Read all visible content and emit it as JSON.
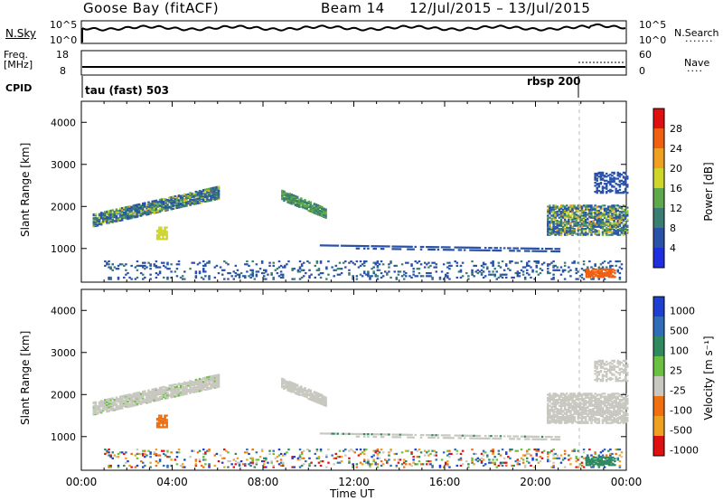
{
  "header": {
    "station": "Goose Bay (fitACF)",
    "beam": "Beam 14",
    "daterange": "12/Jul/2015 – 13/Jul/2015"
  },
  "panels": {
    "noise": {
      "left_label": "N.Sky",
      "right_label": "N.Search",
      "left_ticks": [
        "10^5",
        "10^0"
      ],
      "right_ticks": [
        "10^5",
        "10^0"
      ]
    },
    "freq": {
      "left_label_line1": "Freq.",
      "left_label_line2": "[MHz]",
      "right_label": "Nave",
      "left_ticks": [
        "18",
        "8"
      ],
      "right_ticks": [
        "60",
        "0"
      ]
    },
    "cpid": {
      "label": "CPID",
      "segments": [
        "tau (fast) 503",
        "rbsp 200"
      ]
    }
  },
  "chart_data": [
    {
      "type": "heatmap",
      "title": "",
      "xlabel": "",
      "ylabel": "Slant Range [km]",
      "x_ticks": [
        "00:00",
        "04:00",
        "08:00",
        "12:00",
        "16:00",
        "20:00",
        "00:00"
      ],
      "y_ticks": [
        1000,
        2000,
        3000,
        4000
      ],
      "ylim": [
        200,
        4500
      ],
      "colorbar_label": "Power [dB]",
      "colorbar_ticks": [
        4,
        8,
        12,
        16,
        20,
        24,
        28
      ],
      "colorbar_colors": [
        "#1f2fe0",
        "#2a52a8",
        "#3a7d72",
        "#5fa84c",
        "#cfd62a",
        "#f0a020",
        "#f06010",
        "#e01010"
      ],
      "features": [
        {
          "time_h": [
            0.5,
            6
          ],
          "range_km": [
            1500,
            2300
          ],
          "description": "diagonal band"
        },
        {
          "time_h": [
            8.8,
            10.8
          ],
          "range_km": [
            1700,
            2400
          ],
          "description": "diagonal band"
        },
        {
          "time_h": [
            10.5,
            21
          ],
          "range_km": [
            900,
            1100
          ],
          "description": "near-range band"
        },
        {
          "time_h": [
            20.5,
            24
          ],
          "range_km": [
            1300,
            2700
          ],
          "description": "strong echoes"
        }
      ]
    },
    {
      "type": "heatmap",
      "title": "",
      "xlabel": "Time UT",
      "ylabel": "Slant Range [km]",
      "x_ticks": [
        "00:00",
        "04:00",
        "08:00",
        "12:00",
        "16:00",
        "20:00",
        "00:00"
      ],
      "y_ticks": [
        1000,
        2000,
        3000,
        4000
      ],
      "ylim": [
        200,
        4500
      ],
      "colorbar_label": "Velocity [m s⁻¹]",
      "colorbar_ticks": [
        1000,
        500,
        100,
        25,
        -25,
        -100,
        -500,
        -1000
      ],
      "colorbar_colors": [
        "#1f3fd0",
        "#2f6db8",
        "#2f8a60",
        "#6ac040",
        "#c8c8c0",
        "#f07010",
        "#f0a020",
        "#e01010"
      ]
    }
  ]
}
